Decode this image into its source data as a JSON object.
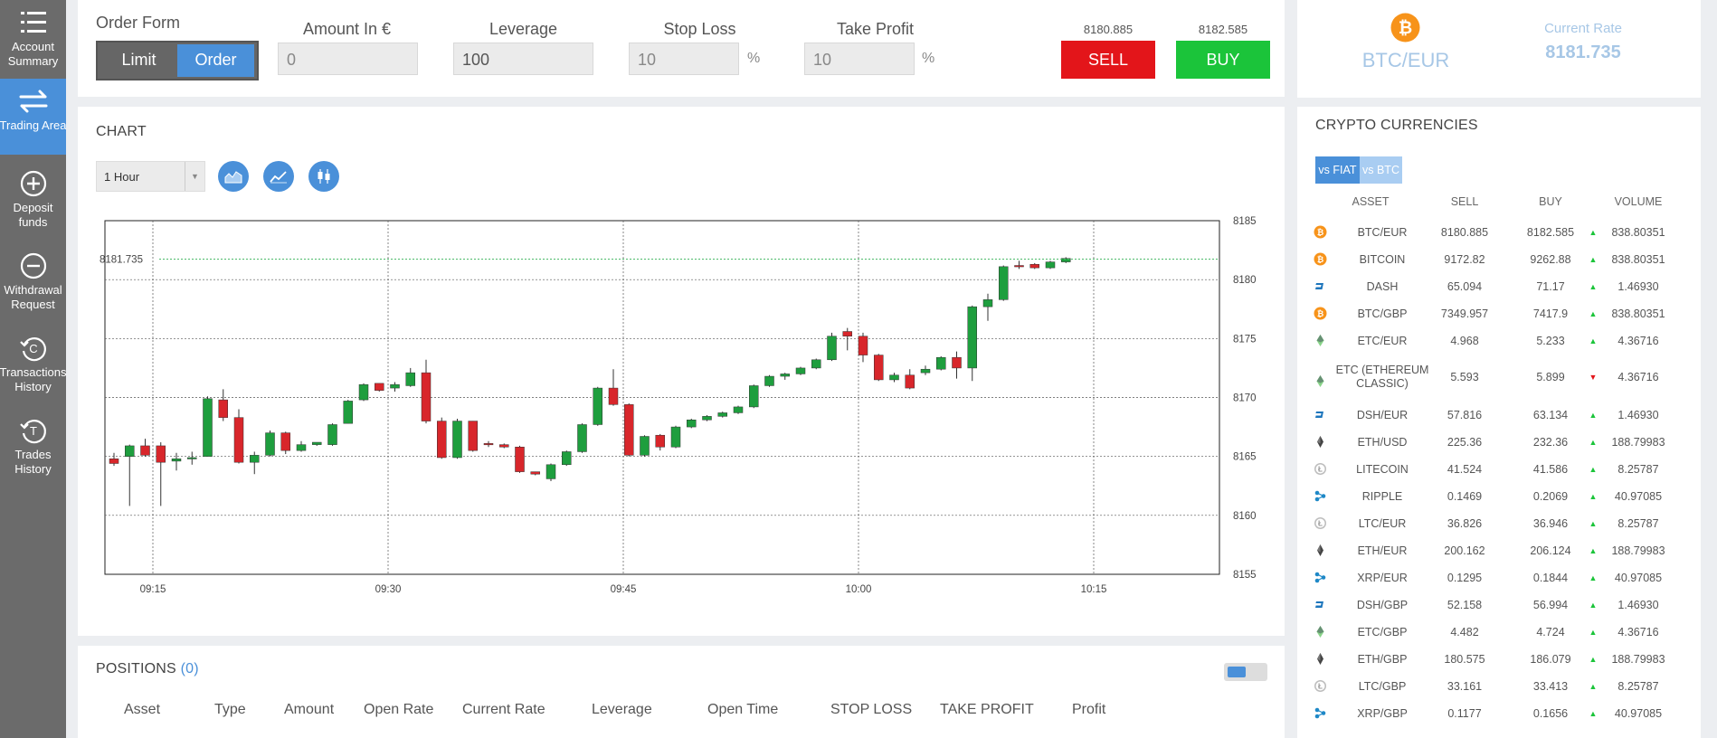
{
  "sidebar": {
    "items": [
      {
        "label1": "Account",
        "label2": "Summary",
        "icon": "list-icon"
      },
      {
        "label1": "Trading Area",
        "label2": "",
        "icon": "swap-arrows-icon"
      },
      {
        "label1": "Deposit",
        "label2": "funds",
        "icon": "plus-circle-icon"
      },
      {
        "label1": "Withdrawal",
        "label2": "Request",
        "icon": "minus-circle-icon"
      },
      {
        "label1": "Transactions",
        "label2": "History",
        "icon": "history-icon"
      },
      {
        "label1": "Trades",
        "label2": "History",
        "icon": "trades-icon"
      }
    ]
  },
  "order_form": {
    "title": "Order Form",
    "tab_limit": "Limit",
    "tab_order": "Order",
    "amount_label": "Amount In €",
    "amount_value": "0",
    "leverage_label": "Leverage",
    "leverage_value": "100",
    "stop_loss_label": "Stop Loss",
    "stop_loss_value": "10",
    "take_profit_label": "Take Profit",
    "take_profit_value": "10",
    "percent": "%",
    "sell_price": "8180.885",
    "buy_price": "8182.585",
    "sell_label": "SELL",
    "buy_label": "BUY"
  },
  "rate": {
    "pair": "BTC/EUR",
    "current_label": "Current Rate",
    "current_value": "8181.735"
  },
  "chart": {
    "title": "CHART",
    "interval": "1 Hour",
    "chart_type_icons": [
      "area-chart-icon",
      "line-chart-icon",
      "candlestick-icon"
    ],
    "current_price_label": "8181.735"
  },
  "chart_data": {
    "type": "candlestick",
    "ylim": [
      8155,
      8185
    ],
    "y_ticks": [
      "8185",
      "8180",
      "8175",
      "8170",
      "8165",
      "8160",
      "8155"
    ],
    "x_ticks": [
      "09:15",
      "09:30",
      "09:45",
      "10:00",
      "10:15"
    ],
    "current_price": 8181.735,
    "candles": [
      [
        8164.8,
        8165.3,
        8164.2,
        8164.4
      ],
      [
        8165.0,
        8166.0,
        8160.8,
        8165.9
      ],
      [
        8165.9,
        8166.5,
        8165.0,
        8165.1
      ],
      [
        8165.9,
        8166.2,
        8160.8,
        8164.5
      ],
      [
        8164.6,
        8165.3,
        8163.8,
        8164.8
      ],
      [
        8164.8,
        8165.4,
        8164.3,
        8164.9
      ],
      [
        8165.0,
        8170.1,
        8165.0,
        8169.9
      ],
      [
        8169.8,
        8170.7,
        8168.0,
        8168.3
      ],
      [
        8168.3,
        8169.0,
        8164.4,
        8164.5
      ],
      [
        8164.5,
        8165.4,
        8163.5,
        8165.1
      ],
      [
        8165.1,
        8167.2,
        8165.0,
        8167.0
      ],
      [
        8167.0,
        8167.1,
        8165.2,
        8165.5
      ],
      [
        8165.5,
        8166.3,
        8165.4,
        8166.0
      ],
      [
        8166.0,
        8166.2,
        8165.9,
        8166.2
      ],
      [
        8166.0,
        8167.8,
        8165.9,
        8167.7
      ],
      [
        8167.8,
        8169.8,
        8167.8,
        8169.7
      ],
      [
        8169.8,
        8171.2,
        8169.7,
        8171.1
      ],
      [
        8171.2,
        8171.2,
        8170.5,
        8170.6
      ],
      [
        8170.8,
        8171.3,
        8170.5,
        8171.1
      ],
      [
        8171.0,
        8172.5,
        8170.9,
        8172.1
      ],
      [
        8172.1,
        8173.2,
        8167.8,
        8168.0
      ],
      [
        8168.0,
        8168.3,
        8164.8,
        8164.9
      ],
      [
        8164.9,
        8168.2,
        8164.8,
        8168.0
      ],
      [
        8168.0,
        8168.0,
        8165.4,
        8165.5
      ],
      [
        8166.1,
        8166.3,
        8165.8,
        8166.0
      ],
      [
        8166.0,
        8166.1,
        8165.7,
        8165.8
      ],
      [
        8165.8,
        8165.9,
        8163.6,
        8163.7
      ],
      [
        8163.7,
        8163.7,
        8163.4,
        8163.5
      ],
      [
        8163.1,
        8164.4,
        8162.9,
        8164.3
      ],
      [
        8164.3,
        8165.5,
        8164.2,
        8165.4
      ],
      [
        8165.4,
        8167.8,
        8165.3,
        8167.7
      ],
      [
        8167.7,
        8170.9,
        8167.6,
        8170.8
      ],
      [
        8170.8,
        8172.4,
        8169.3,
        8169.4
      ],
      [
        8169.4,
        8169.5,
        8165.0,
        8165.1
      ],
      [
        8165.1,
        8166.8,
        8165.0,
        8166.7
      ],
      [
        8166.8,
        8166.9,
        8165.5,
        8165.8
      ],
      [
        8165.8,
        8167.6,
        8165.7,
        8167.5
      ],
      [
        8167.5,
        8168.2,
        8167.4,
        8168.1
      ],
      [
        8168.1,
        8168.5,
        8168.0,
        8168.4
      ],
      [
        8168.4,
        8168.8,
        8168.3,
        8168.7
      ],
      [
        8168.7,
        8169.3,
        8168.6,
        8169.2
      ],
      [
        8169.2,
        8171.1,
        8169.1,
        8171.0
      ],
      [
        8171.0,
        8171.9,
        8170.9,
        8171.8
      ],
      [
        8171.8,
        8172.1,
        8171.5,
        8172.0
      ],
      [
        8172.0,
        8172.6,
        8171.9,
        8172.5
      ],
      [
        8172.5,
        8173.3,
        8172.4,
        8173.2
      ],
      [
        8173.2,
        8175.5,
        8173.1,
        8175.2
      ],
      [
        8175.6,
        8175.9,
        8174.0,
        8175.2
      ],
      [
        8175.2,
        8175.5,
        8173.0,
        8173.6
      ],
      [
        8173.6,
        8173.7,
        8171.4,
        8171.5
      ],
      [
        8171.5,
        8172.1,
        8171.3,
        8171.9
      ],
      [
        8171.9,
        8172.4,
        8170.7,
        8170.8
      ],
      [
        8172.1,
        8172.7,
        8171.9,
        8172.4
      ],
      [
        8172.4,
        8173.5,
        8172.3,
        8173.4
      ],
      [
        8173.4,
        8173.9,
        8171.6,
        8172.5
      ],
      [
        8172.5,
        8177.8,
        8171.4,
        8177.7
      ],
      [
        8177.7,
        8178.8,
        8176.5,
        8178.3
      ],
      [
        8178.3,
        8181.2,
        8178.2,
        8181.1
      ],
      [
        8181.2,
        8181.6,
        8180.9,
        8181.1
      ],
      [
        8181.3,
        8181.4,
        8180.9,
        8181.0
      ],
      [
        8181.0,
        8181.6,
        8180.9,
        8181.5
      ],
      [
        8181.5,
        8181.9,
        8181.4,
        8181.8
      ]
    ]
  },
  "crypto": {
    "title": "CRYPTO CURRENCIES",
    "tab_fiat": "vs FIAT",
    "tab_btc": "vs BTC",
    "headers": {
      "asset": "ASSET",
      "sell": "SELL",
      "buy": "BUY",
      "volume": "VOLUME"
    },
    "rows": [
      {
        "asset": "BTC/EUR",
        "sell": "8180.885",
        "buy": "8182.585",
        "volume": "838.80351",
        "icon": "bitcoin-icon",
        "trend": "up"
      },
      {
        "asset": "BITCOIN",
        "sell": "9172.82",
        "buy": "9262.88",
        "volume": "838.80351",
        "icon": "bitcoin-icon",
        "trend": "up"
      },
      {
        "asset": "DASH",
        "sell": "65.094",
        "buy": "71.17",
        "volume": "1.46930",
        "icon": "dash-icon",
        "trend": "up"
      },
      {
        "asset": "BTC/GBP",
        "sell": "7349.957",
        "buy": "7417.9",
        "volume": "838.80351",
        "icon": "bitcoin-icon",
        "trend": "up"
      },
      {
        "asset": "ETC/EUR",
        "sell": "4.968",
        "buy": "5.233",
        "volume": "4.36716",
        "icon": "ethereum-classic-icon",
        "trend": "up"
      },
      {
        "asset": "ETC (ETHEREUM",
        "asset2": "CLASSIC)",
        "sell": "5.593",
        "buy": "5.899",
        "volume": "4.36716",
        "icon": "ethereum-classic-icon",
        "trend": "down"
      },
      {
        "asset": "DSH/EUR",
        "sell": "57.816",
        "buy": "63.134",
        "volume": "1.46930",
        "icon": "dash-icon",
        "trend": "up"
      },
      {
        "asset": "ETH/USD",
        "sell": "225.36",
        "buy": "232.36",
        "volume": "188.79983",
        "icon": "ethereum-icon",
        "trend": "up"
      },
      {
        "asset": "LITECOIN",
        "sell": "41.524",
        "buy": "41.586",
        "volume": "8.25787",
        "icon": "litecoin-icon",
        "trend": "up"
      },
      {
        "asset": "RIPPLE",
        "sell": "0.1469",
        "buy": "0.2069",
        "volume": "40.97085",
        "icon": "ripple-icon",
        "trend": "up"
      },
      {
        "asset": "LTC/EUR",
        "sell": "36.826",
        "buy": "36.946",
        "volume": "8.25787",
        "icon": "litecoin-icon",
        "trend": "up"
      },
      {
        "asset": "ETH/EUR",
        "sell": "200.162",
        "buy": "206.124",
        "volume": "188.79983",
        "icon": "ethereum-icon",
        "trend": "up"
      },
      {
        "asset": "XRP/EUR",
        "sell": "0.1295",
        "buy": "0.1844",
        "volume": "40.97085",
        "icon": "ripple-icon",
        "trend": "up"
      },
      {
        "asset": "DSH/GBP",
        "sell": "52.158",
        "buy": "56.994",
        "volume": "1.46930",
        "icon": "dash-icon",
        "trend": "up"
      },
      {
        "asset": "ETC/GBP",
        "sell": "4.482",
        "buy": "4.724",
        "volume": "4.36716",
        "icon": "ethereum-classic-icon",
        "trend": "up"
      },
      {
        "asset": "ETH/GBP",
        "sell": "180.575",
        "buy": "186.079",
        "volume": "188.79983",
        "icon": "ethereum-icon",
        "trend": "up"
      },
      {
        "asset": "LTC/GBP",
        "sell": "33.161",
        "buy": "33.413",
        "volume": "8.25787",
        "icon": "litecoin-icon",
        "trend": "up"
      },
      {
        "asset": "XRP/GBP",
        "sell": "0.1177",
        "buy": "0.1656",
        "volume": "40.97085",
        "icon": "ripple-icon",
        "trend": "up"
      }
    ]
  },
  "positions": {
    "title": "POSITIONS",
    "count": "(0)",
    "columns": [
      "Asset",
      "Type",
      "Amount",
      "Open Rate",
      "Current Rate",
      "Leverage",
      "Open Time",
      "STOP LOSS",
      "TAKE PROFIT",
      "Profit"
    ]
  },
  "colors": {
    "accent": "#4a90d9",
    "sell": "#e3151a",
    "buy": "#1bc43a",
    "candle_up": "#1e9e3e",
    "candle_down": "#d8262b",
    "sidebar": "#6b6b6b",
    "bitcoin": "#f7931a"
  }
}
